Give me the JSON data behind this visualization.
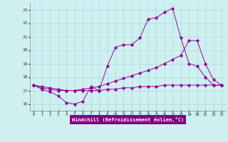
{
  "title": "Windchill (Refroidissement éolien,°C)",
  "background_color": "#cff0f0",
  "grid_color": "#aad8d8",
  "line_color": "#990099",
  "xlim": [
    -0.5,
    23.5
  ],
  "ylim": [
    15.5,
    23.5
  ],
  "yticks": [
    16,
    17,
    18,
    19,
    20,
    21,
    22,
    23
  ],
  "xticks": [
    0,
    1,
    2,
    3,
    4,
    5,
    6,
    7,
    8,
    9,
    10,
    11,
    12,
    13,
    14,
    15,
    16,
    17,
    18,
    19,
    20,
    21,
    22,
    23
  ],
  "series1_x": [
    0,
    1,
    2,
    3,
    4,
    5,
    6,
    7,
    8,
    9,
    10,
    11,
    12,
    13,
    14,
    15,
    16,
    17,
    18,
    19,
    20,
    21,
    22,
    23
  ],
  "series1_y": [
    17.4,
    17.1,
    16.9,
    16.6,
    16.1,
    16.0,
    16.2,
    17.3,
    17.0,
    18.8,
    20.2,
    20.4,
    20.4,
    20.9,
    22.3,
    22.4,
    22.8,
    23.1,
    20.9,
    19.0,
    18.8,
    18.0,
    17.4,
    17.4
  ],
  "series2_x": [
    0,
    1,
    2,
    3,
    4,
    5,
    6,
    7,
    8,
    9,
    10,
    11,
    12,
    13,
    14,
    15,
    16,
    17,
    18,
    19,
    20,
    21,
    22,
    23
  ],
  "series2_y": [
    17.4,
    17.3,
    17.2,
    17.1,
    17.0,
    17.0,
    17.1,
    17.2,
    17.3,
    17.5,
    17.7,
    17.9,
    18.1,
    18.3,
    18.5,
    18.7,
    19.0,
    19.3,
    19.6,
    20.7,
    20.7,
    19.0,
    17.8,
    17.4
  ],
  "series3_x": [
    0,
    1,
    2,
    3,
    4,
    5,
    6,
    7,
    8,
    9,
    10,
    11,
    12,
    13,
    14,
    15,
    16,
    17,
    18,
    19,
    20,
    21,
    22,
    23
  ],
  "series3_y": [
    17.4,
    17.2,
    17.1,
    17.0,
    17.0,
    17.0,
    17.0,
    17.0,
    17.0,
    17.1,
    17.1,
    17.2,
    17.2,
    17.3,
    17.3,
    17.3,
    17.4,
    17.4,
    17.4,
    17.4,
    17.4,
    17.4,
    17.4,
    17.4
  ]
}
